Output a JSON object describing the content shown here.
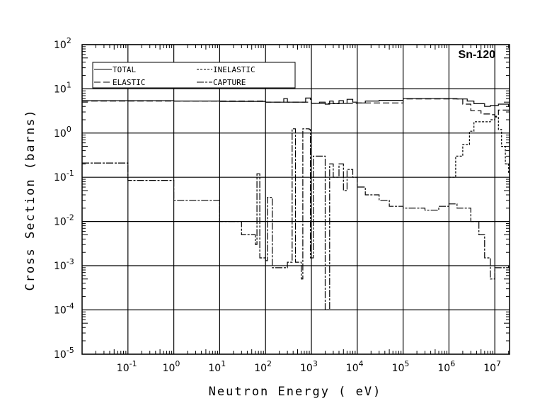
{
  "chart_data": {
    "type": "line",
    "title": "Sn-120",
    "xlabel": "Neutron Energy ( eV)",
    "ylabel": "Cross Section (barns)",
    "xscale": "log",
    "yscale": "log",
    "xlim": [
      0.01,
      20000000
    ],
    "ylim": [
      1e-05,
      100
    ],
    "grid": true,
    "legend_position": "top-left",
    "x_ticks": [
      {
        "base": "10",
        "exp": "-1",
        "value": 0.1
      },
      {
        "base": "10",
        "exp": "0",
        "value": 1
      },
      {
        "base": "10",
        "exp": "1",
        "value": 10
      },
      {
        "base": "10",
        "exp": "2",
        "value": 100
      },
      {
        "base": "10",
        "exp": "3",
        "value": 1000
      },
      {
        "base": "10",
        "exp": "4",
        "value": 10000
      },
      {
        "base": "10",
        "exp": "5",
        "value": 100000
      },
      {
        "base": "10",
        "exp": "6",
        "value": 1000000
      },
      {
        "base": "10",
        "exp": "7",
        "value": 10000000
      }
    ],
    "y_ticks": [
      {
        "base": "10",
        "exp": "2",
        "value": 100
      },
      {
        "base": "10",
        "exp": "1",
        "value": 10
      },
      {
        "base": "10",
        "exp": "0",
        "value": 1
      },
      {
        "base": "10",
        "exp": "-1",
        "value": 0.1
      },
      {
        "base": "10",
        "exp": "-2",
        "value": 0.01
      },
      {
        "base": "10",
        "exp": "-3",
        "value": 0.001
      },
      {
        "base": "10",
        "exp": "-4",
        "value": 0.0001
      },
      {
        "base": "10",
        "exp": "-5",
        "value": 1e-05
      }
    ],
    "series": [
      {
        "name": "TOTAL",
        "style": "solid",
        "points": [
          [
            0.01,
            5.4
          ],
          [
            1,
            5.3
          ],
          [
            10,
            5.2
          ],
          [
            100,
            5.0
          ],
          [
            200,
            5.0
          ],
          [
            250,
            6.0
          ],
          [
            300,
            5.0
          ],
          [
            700,
            5.0
          ],
          [
            750,
            6.2
          ],
          [
            950,
            5.8
          ],
          [
            1000,
            4.7
          ],
          [
            1500,
            5.0
          ],
          [
            2000,
            4.5
          ],
          [
            2500,
            5.3
          ],
          [
            3000,
            4.6
          ],
          [
            4000,
            5.4
          ],
          [
            5000,
            4.7
          ],
          [
            6000,
            5.8
          ],
          [
            8000,
            5.0
          ],
          [
            10000,
            4.8
          ],
          [
            15000,
            5.3
          ],
          [
            30000,
            5.5
          ],
          [
            100000,
            6.0
          ],
          [
            1000000,
            6.0
          ],
          [
            1500000,
            5.9
          ],
          [
            2500000,
            5.3
          ],
          [
            3500000,
            4.6
          ],
          [
            6000000,
            4.0
          ],
          [
            8000000,
            4.2
          ],
          [
            12000000,
            4.5
          ],
          [
            20000000,
            3.9
          ]
        ]
      },
      {
        "name": "ELASTIC",
        "style": "dashed",
        "points": [
          [
            0.01,
            5.3
          ],
          [
            100,
            5.0
          ],
          [
            1000,
            4.7
          ],
          [
            10000,
            4.8
          ],
          [
            100000,
            5.9
          ],
          [
            1000000,
            5.9
          ],
          [
            2000000,
            4.5
          ],
          [
            3000000,
            3.2
          ],
          [
            5000000,
            2.7
          ],
          [
            8000000,
            2.6
          ],
          [
            10000000,
            2.4
          ],
          [
            12000000,
            3.3
          ],
          [
            20000000,
            2.8
          ]
        ]
      },
      {
        "name": "INELASTIC",
        "style": "dotted",
        "points": [
          [
            1000000,
            0.1
          ],
          [
            1400000,
            0.1
          ],
          [
            1400000,
            0.3
          ],
          [
            2000000,
            0.3
          ],
          [
            2000000,
            0.55
          ],
          [
            2800000,
            0.55
          ],
          [
            2800000,
            1.1
          ],
          [
            3500000,
            1.1
          ],
          [
            3500000,
            1.8
          ],
          [
            4500000,
            1.8
          ],
          [
            6000000,
            1.8
          ],
          [
            8000000,
            2.0
          ],
          [
            10000000,
            2.3
          ],
          [
            12000000,
            1.2
          ],
          [
            14000000,
            0.5
          ],
          [
            17000000,
            0.2
          ],
          [
            20000000,
            0.12
          ]
        ]
      },
      {
        "name": "CAPTURE",
        "style": "dashdot",
        "points": [
          [
            0.01,
            0.21
          ],
          [
            0.1,
            0.085
          ],
          [
            1,
            0.03
          ],
          [
            10,
            0.01
          ],
          [
            30,
            0.005
          ],
          [
            60,
            0.003
          ],
          [
            65,
            0.12
          ],
          [
            75,
            0.0015
          ],
          [
            100,
            0.0013
          ],
          [
            110,
            0.035
          ],
          [
            140,
            0.0009
          ],
          [
            200,
            0.0009
          ],
          [
            300,
            0.0012
          ],
          [
            380,
            1.25
          ],
          [
            450,
            0.0012
          ],
          [
            600,
            0.0005
          ],
          [
            650,
            1.25
          ],
          [
            900,
            1.2
          ],
          [
            950,
            0.0015
          ],
          [
            1100,
            0.3
          ],
          [
            1900,
            0.3
          ],
          [
            2000,
            0.0001
          ],
          [
            2500,
            0.2
          ],
          [
            3000,
            0.1
          ],
          [
            4000,
            0.2
          ],
          [
            5000,
            0.05
          ],
          [
            6000,
            0.15
          ],
          [
            8000,
            0.1
          ],
          [
            10000,
            0.06
          ],
          [
            15000,
            0.04
          ],
          [
            30000,
            0.03
          ],
          [
            50000,
            0.022
          ],
          [
            100000,
            0.02
          ],
          [
            300000,
            0.018
          ],
          [
            600000,
            0.022
          ],
          [
            1000000,
            0.025
          ],
          [
            1500000,
            0.02
          ],
          [
            2500000,
            0.02
          ],
          [
            3000000,
            0.01
          ],
          [
            4500000,
            0.005
          ],
          [
            6000000,
            0.0015
          ],
          [
            8000000,
            0.0005
          ],
          [
            10000000,
            0.0009
          ],
          [
            20000000,
            0.001
          ]
        ]
      }
    ]
  }
}
